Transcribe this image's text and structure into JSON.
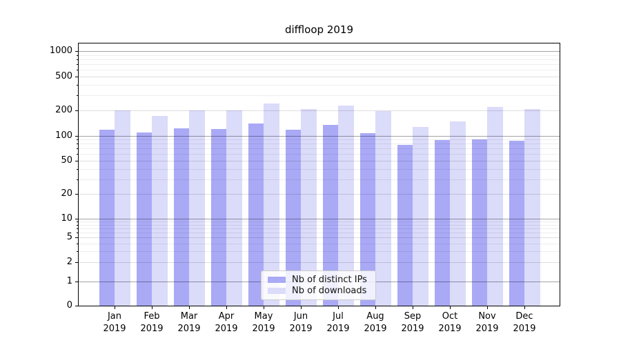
{
  "chart_data": {
    "type": "bar",
    "title": "diffloop 2019",
    "categories": [
      "Jan 2019",
      "Feb 2019",
      "Mar 2019",
      "Apr 2019",
      "May 2019",
      "Jun 2019",
      "Jul 2019",
      "Aug 2019",
      "Sep 2019",
      "Oct 2019",
      "Nov 2019",
      "Dec 2019"
    ],
    "series": [
      {
        "name": "Nb of distinct IPs",
        "color": "#a9a9f6",
        "values": [
          117,
          110,
          123,
          120,
          139,
          118,
          134,
          108,
          78,
          89,
          91,
          87
        ]
      },
      {
        "name": "Nb of downloads",
        "color": "#dbdbfa",
        "values": [
          200,
          170,
          198,
          199,
          241,
          208,
          228,
          195,
          126,
          147,
          217,
          207
        ]
      }
    ],
    "xlabel": "",
    "ylabel": "",
    "yscale": "symlog",
    "ylim": [
      0,
      1250
    ],
    "yticks": [
      0,
      1,
      2,
      5,
      10,
      20,
      50,
      100,
      200,
      500,
      1000
    ],
    "ytick_labels": [
      "0",
      "1",
      "2",
      "5",
      "10",
      "20",
      "50",
      "100",
      "200",
      "500",
      "1000"
    ],
    "grid": true,
    "legend_position": "lower center"
  }
}
